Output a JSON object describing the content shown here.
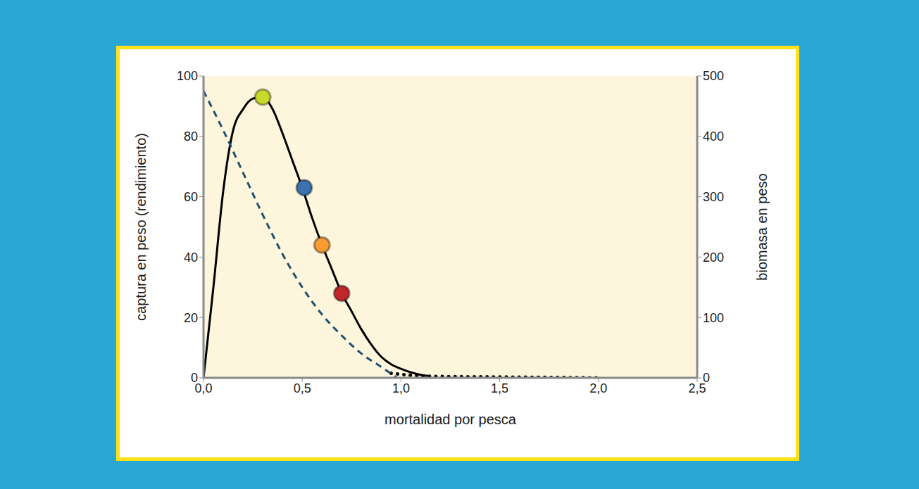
{
  "chart_data": {
    "type": "line",
    "x_label": "mortalidad por pesca",
    "y_label": "captura en peso (rendimiento)",
    "y2_label": "biomasa en peso",
    "xlim": [
      0,
      2.5
    ],
    "xticks": [
      {
        "value": 0,
        "label": "0,0"
      },
      {
        "value": 0.5,
        "label": "0,5"
      },
      {
        "value": 1,
        "label": "1,0"
      },
      {
        "value": 1.5,
        "label": "1,5"
      },
      {
        "value": 2,
        "label": "2,0"
      },
      {
        "value": 2.5,
        "label": "2,5"
      }
    ],
    "ylim": [
      0,
      100
    ],
    "yticks": [
      0,
      20,
      40,
      60,
      80,
      100
    ],
    "y2lim": [
      0,
      500
    ],
    "y2ticks": [
      0,
      100,
      200,
      300,
      400,
      500
    ],
    "grid": false,
    "series": [
      {
        "type": "line",
        "line_style": "solid",
        "color": "#000000",
        "x": [
          0,
          0.05,
          0.1,
          0.15,
          0.2,
          0.25,
          0.3,
          0.35,
          0.4,
          0.45,
          0.5,
          0.55,
          0.6,
          0.65,
          0.7,
          0.75,
          0.8,
          0.85,
          0.9,
          0.95,
          1.0,
          1.05,
          1.1,
          1.15
        ],
        "values": [
          0,
          30,
          62,
          82,
          89,
          92.5,
          93,
          89,
          81,
          72,
          63,
          53,
          44,
          36,
          28,
          22,
          16,
          11,
          7,
          4.5,
          3,
          1.8,
          1,
          0.5
        ]
      },
      {
        "type": "line",
        "line_style": "dotted",
        "color": "#000000",
        "x": [
          0.95,
          1.15,
          1.5,
          2.0
        ],
        "values": [
          1.5,
          0.5,
          0.3,
          0
        ]
      },
      {
        "type": "line",
        "line_style": "dashed",
        "color": "#1d4f6e",
        "axis": "y2",
        "x": [
          0,
          0.1,
          0.2,
          0.3,
          0.4,
          0.5,
          0.6,
          0.7,
          0.8,
          0.9,
          0.98
        ],
        "values": [
          475,
          410,
          340,
          270,
          205,
          150,
          105,
          70,
          40,
          18,
          0
        ]
      },
      {
        "type": "scatter",
        "marker": "circle",
        "colors": [
          "#c9d92c",
          "#3b72b0",
          "#f89c33",
          "#c0272d"
        ],
        "x": [
          0.3,
          0.51,
          0.6,
          0.7
        ],
        "values": [
          93,
          63,
          44,
          28
        ]
      }
    ]
  }
}
